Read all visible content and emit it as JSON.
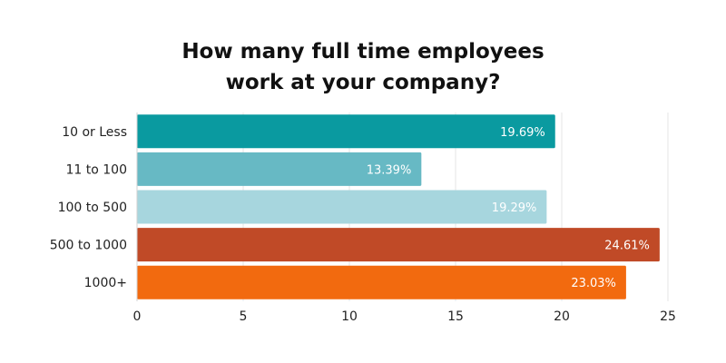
{
  "chart_data": {
    "type": "bar",
    "orientation": "horizontal",
    "title_lines": [
      "How many full time employees",
      "work at your company?"
    ],
    "categories": [
      "10 or Less",
      "11 to 100",
      "100 to 500",
      "500 to 1000",
      "1000+"
    ],
    "values": [
      19.69,
      13.39,
      19.29,
      24.61,
      23.03
    ],
    "data_labels": [
      "19.69%",
      "13.39%",
      "19.29%",
      "24.61%",
      "23.03%"
    ],
    "colors": [
      "#0a9aa0",
      "#67b9c4",
      "#a7d6de",
      "#c04a27",
      "#f26a0f"
    ],
    "xlim": [
      0,
      25
    ],
    "xticks": [
      0,
      5,
      10,
      15,
      20,
      25
    ],
    "xtick_labels": [
      "0",
      "5",
      "10",
      "15",
      "20",
      "25"
    ],
    "xlabel": "",
    "ylabel": "",
    "grid": "vertical",
    "legend": "none"
  }
}
